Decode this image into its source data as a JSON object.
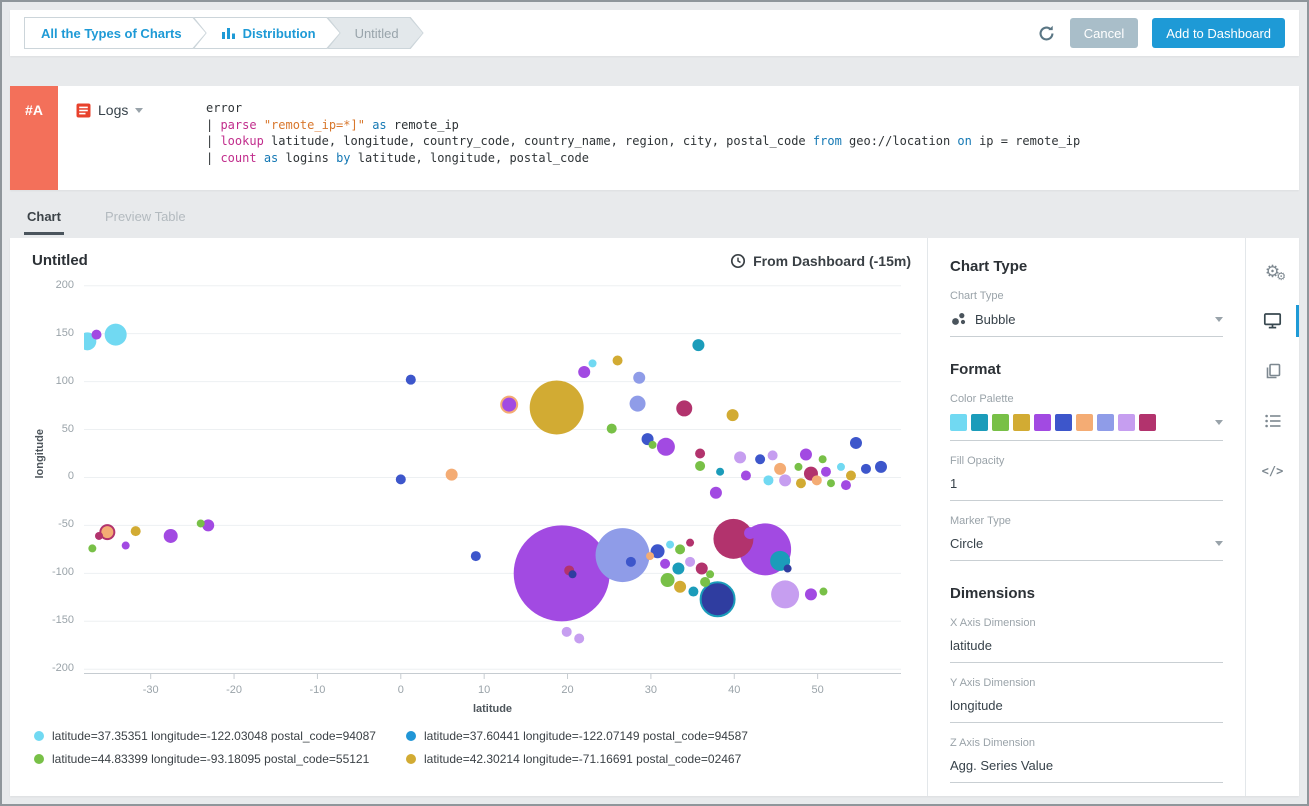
{
  "breadcrumb": {
    "items": [
      {
        "label": "All the Types of Charts",
        "variant": "link"
      },
      {
        "label": "Distribution",
        "variant": "link",
        "icon": "bar-chart-icon"
      },
      {
        "label": "Untitled",
        "variant": "muted"
      }
    ]
  },
  "topbar": {
    "refresh_icon": "refresh-icon",
    "cancel_label": "Cancel",
    "add_label": "Add to Dashboard",
    "accent_color": "#1e9ad6"
  },
  "query": {
    "row_id": "#A",
    "source_label": "Logs",
    "source_icon": "logs-icon",
    "lines": [
      [
        {
          "t": "error",
          "c": "pl"
        }
      ],
      [
        {
          "t": "| ",
          "c": "pl"
        },
        {
          "t": "parse ",
          "c": "kw"
        },
        {
          "t": "\"remote_ip=*]\" ",
          "c": "str"
        },
        {
          "t": "as",
          "c": "op"
        },
        {
          "t": " remote_ip",
          "c": "pl"
        }
      ],
      [
        {
          "t": "| ",
          "c": "pl"
        },
        {
          "t": "lookup ",
          "c": "kw"
        },
        {
          "t": "latitude, longitude, country_code, country_name, region, city, postal_code ",
          "c": "pl"
        },
        {
          "t": "from",
          "c": "op"
        },
        {
          "t": " geo://location ",
          "c": "pl"
        },
        {
          "t": "on",
          "c": "op"
        },
        {
          "t": " ip = remote_ip",
          "c": "pl"
        }
      ],
      [
        {
          "t": "| ",
          "c": "pl"
        },
        {
          "t": "count ",
          "c": "kw"
        },
        {
          "t": "as",
          "c": "op"
        },
        {
          "t": " logins ",
          "c": "pl"
        },
        {
          "t": "by",
          "c": "op"
        },
        {
          "t": " latitude, longitude, postal_code",
          "c": "pl"
        }
      ]
    ]
  },
  "tabs": {
    "items": [
      {
        "label": "Chart",
        "active": true
      },
      {
        "label": "Preview Table",
        "active": false
      }
    ]
  },
  "header": {
    "title": "Untitled",
    "time_label": "From Dashboard (-15m)"
  },
  "chart_data": {
    "type": "bubble",
    "title": "Untitled",
    "xlabel": "latitude",
    "ylabel": "longitude",
    "xlim": [
      -38,
      60
    ],
    "ylim": [
      -205,
      207
    ],
    "x_ticks": [
      -30,
      -20,
      -10,
      0,
      10,
      20,
      30,
      40,
      50
    ],
    "y_ticks": [
      200,
      150,
      100,
      50,
      0,
      -50,
      -100,
      -150,
      -200
    ],
    "grid": "horizontal",
    "legend_position": "bottom",
    "colors": {
      "cyan": "#71d9f2",
      "teal": "#1b9cba",
      "green": "#78c047",
      "yellow": "#d2ab33",
      "purple": "#a24ae2",
      "blue": "#3d56cb",
      "navy": "#2f3da0",
      "orange": "#f4ac74",
      "periwinkle": "#8f9ce8",
      "lavender": "#c69ef0",
      "crimson": "#b2336d"
    },
    "legend": [
      {
        "color": "#71d9f2",
        "label": "latitude=37.35351 longitude=-122.03048 postal_code=94087"
      },
      {
        "color": "#2196d6",
        "label": "latitude=37.60441 longitude=-122.07149 postal_code=94587"
      },
      {
        "color": "#78c047",
        "label": "latitude=44.83399 longitude=-93.18095 postal_code=55121"
      },
      {
        "color": "#d2ab33",
        "label": "latitude=42.30214 longitude=-71.16691 postal_code=02467"
      }
    ],
    "bubbles": [
      {
        "x": -37.6,
        "y": 142,
        "r": 9,
        "c": "cyan"
      },
      {
        "x": -34.2,
        "y": 149,
        "r": 11,
        "c": "cyan"
      },
      {
        "x": -36.5,
        "y": 149,
        "r": 5,
        "c": "purple"
      },
      {
        "x": 1.2,
        "y": 102,
        "r": 5,
        "c": "blue"
      },
      {
        "x": 22.0,
        "y": 110,
        "r": 6,
        "c": "purple"
      },
      {
        "x": 23.0,
        "y": 119,
        "r": 4,
        "c": "cyan"
      },
      {
        "x": 26.0,
        "y": 122,
        "r": 5,
        "c": "yellow"
      },
      {
        "x": 28.6,
        "y": 104,
        "r": 6,
        "c": "periwinkle"
      },
      {
        "x": 35.7,
        "y": 138,
        "r": 6,
        "c": "teal"
      },
      {
        "x": 13.0,
        "y": 76,
        "r": 8,
        "c": "purple",
        "s": "orange"
      },
      {
        "x": 18.7,
        "y": 73,
        "r": 27,
        "c": "yellow"
      },
      {
        "x": 28.4,
        "y": 77,
        "r": 8,
        "c": "periwinkle"
      },
      {
        "x": 34.0,
        "y": 72,
        "r": 8,
        "c": "crimson"
      },
      {
        "x": 39.8,
        "y": 65,
        "r": 6,
        "c": "yellow"
      },
      {
        "x": 25.3,
        "y": 51,
        "r": 5,
        "c": "green"
      },
      {
        "x": 29.6,
        "y": 40,
        "r": 6,
        "c": "blue"
      },
      {
        "x": 31.8,
        "y": 32,
        "r": 9,
        "c": "purple"
      },
      {
        "x": 30.2,
        "y": 34,
        "r": 4,
        "c": "green"
      },
      {
        "x": 35.9,
        "y": 25,
        "r": 5,
        "c": "crimson"
      },
      {
        "x": 40.7,
        "y": 21,
        "r": 6,
        "c": "lavender"
      },
      {
        "x": 44.6,
        "y": 23,
        "r": 5,
        "c": "lavender"
      },
      {
        "x": 48.6,
        "y": 24,
        "r": 6,
        "c": "purple"
      },
      {
        "x": 54.6,
        "y": 36,
        "r": 6,
        "c": "blue"
      },
      {
        "x": 50.6,
        "y": 19,
        "r": 4,
        "c": "green"
      },
      {
        "x": 52.8,
        "y": 11,
        "r": 4,
        "c": "cyan"
      },
      {
        "x": 35.9,
        "y": 12,
        "r": 5,
        "c": "green"
      },
      {
        "x": 38.3,
        "y": 6,
        "r": 4,
        "c": "teal"
      },
      {
        "x": 41.4,
        "y": 2,
        "r": 5,
        "c": "purple"
      },
      {
        "x": 43.1,
        "y": 19,
        "r": 5,
        "c": "blue"
      },
      {
        "x": 45.5,
        "y": 9,
        "r": 6,
        "c": "orange"
      },
      {
        "x": 47.7,
        "y": 11,
        "r": 4,
        "c": "green"
      },
      {
        "x": 49.2,
        "y": 4,
        "r": 7,
        "c": "crimson"
      },
      {
        "x": 51.0,
        "y": 6,
        "r": 5,
        "c": "purple"
      },
      {
        "x": 54.0,
        "y": 2,
        "r": 5,
        "c": "yellow"
      },
      {
        "x": 55.8,
        "y": 9,
        "r": 5,
        "c": "blue"
      },
      {
        "x": 57.6,
        "y": 11,
        "r": 6,
        "c": "blue"
      },
      {
        "x": 44.1,
        "y": -3,
        "r": 5,
        "c": "cyan"
      },
      {
        "x": 46.1,
        "y": -3,
        "r": 6,
        "c": "lavender"
      },
      {
        "x": 48.0,
        "y": -6,
        "r": 5,
        "c": "yellow"
      },
      {
        "x": 49.9,
        "y": -3,
        "r": 5,
        "c": "orange"
      },
      {
        "x": 51.6,
        "y": -6,
        "r": 4,
        "c": "green"
      },
      {
        "x": 53.4,
        "y": -8,
        "r": 5,
        "c": "purple"
      },
      {
        "x": 0.0,
        "y": -2,
        "r": 5,
        "c": "blue"
      },
      {
        "x": 6.1,
        "y": 3,
        "r": 6,
        "c": "orange"
      },
      {
        "x": 37.8,
        "y": -16,
        "r": 6,
        "c": "purple"
      },
      {
        "x": -35.2,
        "y": -57,
        "r": 7,
        "c": "orange",
        "s": "crimson"
      },
      {
        "x": -36.2,
        "y": -61,
        "r": 4,
        "c": "crimson"
      },
      {
        "x": -31.8,
        "y": -56,
        "r": 5,
        "c": "yellow"
      },
      {
        "x": -27.6,
        "y": -61,
        "r": 7,
        "c": "purple"
      },
      {
        "x": -23.1,
        "y": -50,
        "r": 6,
        "c": "purple"
      },
      {
        "x": -24.0,
        "y": -48,
        "r": 4,
        "c": "green"
      },
      {
        "x": -37.0,
        "y": -74,
        "r": 4,
        "c": "green"
      },
      {
        "x": -33.0,
        "y": -71,
        "r": 4,
        "c": "purple"
      },
      {
        "x": 9.0,
        "y": -82,
        "r": 5,
        "c": "blue"
      },
      {
        "x": 19.3,
        "y": -100,
        "r": 48,
        "c": "purple"
      },
      {
        "x": 20.2,
        "y": -97,
        "r": 5,
        "c": "crimson"
      },
      {
        "x": 20.6,
        "y": -101,
        "r": 4,
        "c": "navy"
      },
      {
        "x": 26.6,
        "y": -81,
        "r": 27,
        "c": "periwinkle"
      },
      {
        "x": 27.6,
        "y": -88,
        "r": 5,
        "c": "blue"
      },
      {
        "x": 30.8,
        "y": -77,
        "r": 7,
        "c": "blue"
      },
      {
        "x": 32.3,
        "y": -70,
        "r": 4,
        "c": "cyan"
      },
      {
        "x": 33.5,
        "y": -75,
        "r": 5,
        "c": "green"
      },
      {
        "x": 34.7,
        "y": -68,
        "r": 4,
        "c": "crimson"
      },
      {
        "x": 29.9,
        "y": -82,
        "r": 4,
        "c": "orange"
      },
      {
        "x": 31.7,
        "y": -90,
        "r": 5,
        "c": "purple"
      },
      {
        "x": 33.3,
        "y": -95,
        "r": 6,
        "c": "teal"
      },
      {
        "x": 34.7,
        "y": -88,
        "r": 5,
        "c": "lavender"
      },
      {
        "x": 36.1,
        "y": -95,
        "r": 6,
        "c": "crimson"
      },
      {
        "x": 32.0,
        "y": -107,
        "r": 7,
        "c": "green"
      },
      {
        "x": 33.5,
        "y": -114,
        "r": 6,
        "c": "yellow"
      },
      {
        "x": 35.1,
        "y": -119,
        "r": 5,
        "c": "teal"
      },
      {
        "x": 36.5,
        "y": -109,
        "r": 5,
        "c": "green"
      },
      {
        "x": 37.1,
        "y": -101,
        "r": 4,
        "c": "green"
      },
      {
        "x": 38.0,
        "y": -127,
        "r": 17,
        "c": "navy",
        "s": "teal"
      },
      {
        "x": 39.9,
        "y": -64,
        "r": 20,
        "c": "crimson"
      },
      {
        "x": 41.9,
        "y": -58,
        "r": 6,
        "c": "purple"
      },
      {
        "x": 43.7,
        "y": -75,
        "r": 26,
        "c": "purple"
      },
      {
        "x": 45.5,
        "y": -87,
        "r": 10,
        "c": "teal"
      },
      {
        "x": 46.4,
        "y": -95,
        "r": 4,
        "c": "navy"
      },
      {
        "x": 46.1,
        "y": -122,
        "r": 14,
        "c": "lavender"
      },
      {
        "x": 49.2,
        "y": -122,
        "r": 6,
        "c": "purple"
      },
      {
        "x": 50.7,
        "y": -119,
        "r": 4,
        "c": "green"
      },
      {
        "x": 19.9,
        "y": -161,
        "r": 5,
        "c": "lavender"
      },
      {
        "x": 21.4,
        "y": -168,
        "r": 5,
        "c": "lavender"
      }
    ]
  },
  "settings": {
    "chart_type_heading": "Chart Type",
    "chart_type_label": "Chart Type",
    "chart_type_value": "Bubble",
    "chart_type_icon": "bubble-icon",
    "format_heading": "Format",
    "color_palette_label": "Color Palette",
    "palette": [
      "#71d9f2",
      "#1b9cba",
      "#78c047",
      "#d2ab33",
      "#a24ae2",
      "#3d56cb",
      "#f4ac74",
      "#8f9ce8",
      "#c69ef0",
      "#b2336d"
    ],
    "fill_opacity_label": "Fill Opacity",
    "fill_opacity_value": "1",
    "marker_type_label": "Marker Type",
    "marker_type_value": "Circle",
    "dimensions_heading": "Dimensions",
    "x_dim_label": "X Axis Dimension",
    "x_dim_value": "latitude",
    "y_dim_label": "Y Axis Dimension",
    "y_dim_value": "longitude",
    "z_dim_label": "Z Axis Dimension",
    "z_dim_value": "Agg. Series Value"
  },
  "rail": {
    "items": [
      "settings-gears-icon",
      "display-icon",
      "copy-icon",
      "list-icon",
      "code-icon"
    ],
    "active": "display-icon"
  }
}
